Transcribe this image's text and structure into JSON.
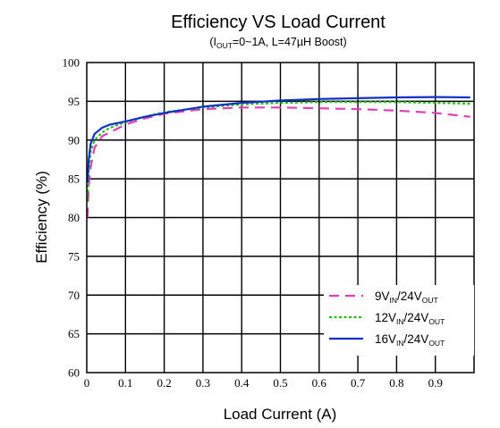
{
  "chart_data": {
    "type": "line",
    "title": "Efficiency VS Load Current",
    "subtitle": {
      "open": "(I",
      "sub": "OUT",
      "rest": "=0~1A, L=47µH Boost)"
    },
    "xlabel": "Load Current (A)",
    "ylabel": "Efficiency (%)",
    "xlim": [
      0,
      0.99
    ],
    "ylim": [
      60,
      100
    ],
    "x_ticks": [
      "0",
      "0.1",
      "0.2",
      "0.3",
      "0.4",
      "0.5",
      "0.6",
      "0.7",
      "0.8",
      "0.9"
    ],
    "y_ticks": [
      "60",
      "65",
      "70",
      "75",
      "80",
      "85",
      "90",
      "95",
      "100"
    ],
    "grid": true,
    "legend_position": "bottom-right",
    "series": [
      {
        "name": "9VIN/24VOUT",
        "legend": {
          "v1": "9V",
          "sub1": "IN",
          "mid": "/24V",
          "sub2": "OUT"
        },
        "color": "#e23fb6",
        "style": "dashed",
        "x": [
          0.002,
          0.005,
          0.01,
          0.02,
          0.04,
          0.06,
          0.1,
          0.15,
          0.2,
          0.3,
          0.4,
          0.5,
          0.6,
          0.7,
          0.8,
          0.9,
          0.99
        ],
        "y": [
          80.0,
          84.0,
          86.5,
          89.0,
          90.5,
          91.0,
          92.0,
          92.8,
          93.4,
          94.0,
          94.2,
          94.2,
          94.1,
          94.0,
          93.8,
          93.5,
          93.0
        ]
      },
      {
        "name": "12VIN/24VOUT",
        "legend": {
          "v1": "12V",
          "sub1": "IN",
          "mid": "/24V",
          "sub2": "OUT"
        },
        "color": "#22c20f",
        "style": "dotted",
        "x": [
          0.002,
          0.005,
          0.01,
          0.02,
          0.04,
          0.06,
          0.1,
          0.15,
          0.2,
          0.3,
          0.4,
          0.5,
          0.6,
          0.7,
          0.8,
          0.9,
          0.99
        ],
        "y": [
          82.0,
          86.0,
          88.5,
          90.0,
          91.0,
          91.6,
          92.3,
          93.0,
          93.6,
          94.2,
          94.6,
          94.8,
          94.9,
          94.9,
          94.9,
          94.8,
          94.7
        ]
      },
      {
        "name": "16VIN/24VOUT",
        "legend": {
          "v1": "16V",
          "sub1": "IN",
          "mid": "/24V",
          "sub2": "OUT"
        },
        "color": "#1030c8",
        "style": "solid",
        "x": [
          0.002,
          0.005,
          0.01,
          0.02,
          0.04,
          0.06,
          0.1,
          0.15,
          0.2,
          0.3,
          0.4,
          0.5,
          0.6,
          0.7,
          0.8,
          0.9,
          0.99
        ],
        "y": [
          84.5,
          87.5,
          89.5,
          90.8,
          91.6,
          92.0,
          92.4,
          93.0,
          93.5,
          94.3,
          94.8,
          95.1,
          95.3,
          95.4,
          95.5,
          95.55,
          95.5
        ]
      }
    ]
  }
}
